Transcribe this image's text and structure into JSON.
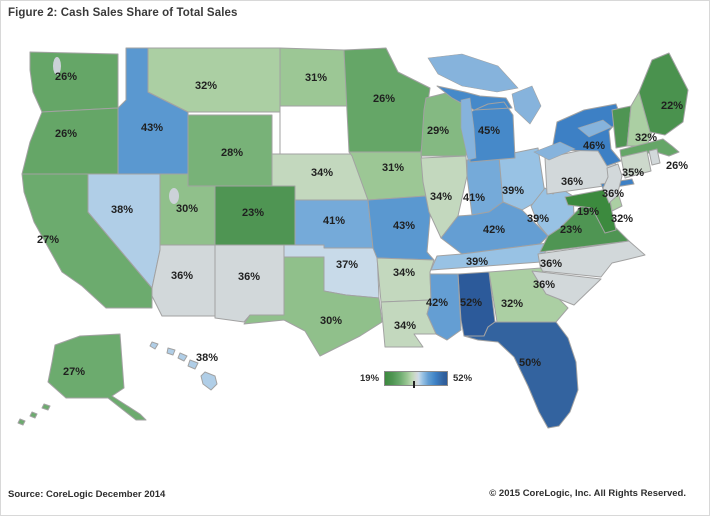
{
  "title": "Figure 2: Cash Sales Share of Total Sales",
  "legend": {
    "min_label": "19%",
    "max_label": "52%"
  },
  "footer": {
    "source": "Source: CoreLogic December 2014",
    "copyright": "© 2015 CoreLogic, Inc. All Rights Reserved."
  },
  "colors": {
    "no_data": "#ffffff",
    "state_border": "#a2a2a2",
    "lake": "#86b3dc",
    "gray_water": "#ccd2d8",
    "ramp": [
      [
        19,
        "#3c8a3e"
      ],
      [
        23,
        "#4f9553"
      ],
      [
        27,
        "#6cab6e"
      ],
      [
        31,
        "#9cc795"
      ],
      [
        33,
        "#b9d6b0"
      ],
      [
        35,
        "#cdd9cc"
      ],
      [
        36,
        "#d2d8da"
      ],
      [
        37,
        "#c8dae9"
      ],
      [
        39,
        "#98c2e4"
      ],
      [
        42,
        "#649ed3"
      ],
      [
        44,
        "#4f91cc"
      ],
      [
        46,
        "#3d80c5"
      ],
      [
        50,
        "#33639f"
      ],
      [
        52,
        "#2c5a9a"
      ]
    ]
  },
  "chart_data": {
    "type": "choropleth",
    "region": "United States",
    "metric": "Cash sales share of total sales (%)",
    "range": [
      19,
      52
    ],
    "title": "Figure 2: Cash Sales Share of Total Sales",
    "states": [
      {
        "abbr": "WA",
        "name": "Washington",
        "value": 26,
        "label": "26%",
        "labeled": true
      },
      {
        "abbr": "OR",
        "name": "Oregon",
        "value": 26,
        "label": "26%",
        "labeled": true
      },
      {
        "abbr": "CA",
        "name": "California",
        "value": 27,
        "label": "27%",
        "labeled": true
      },
      {
        "abbr": "NV",
        "name": "Nevada",
        "value": 38,
        "label": "38%",
        "labeled": true
      },
      {
        "abbr": "ID",
        "name": "Idaho",
        "value": 43,
        "label": "43%",
        "labeled": true
      },
      {
        "abbr": "MT",
        "name": "Montana",
        "value": 32,
        "label": "32%",
        "labeled": true
      },
      {
        "abbr": "WY",
        "name": "Wyoming",
        "value": 28,
        "label": "28%",
        "labeled": true
      },
      {
        "abbr": "UT",
        "name": "Utah",
        "value": 30,
        "label": "30%",
        "labeled": true
      },
      {
        "abbr": "CO",
        "name": "Colorado",
        "value": 23,
        "label": "23%",
        "labeled": true
      },
      {
        "abbr": "AZ",
        "name": "Arizona",
        "value": 36,
        "label": "36%",
        "labeled": true
      },
      {
        "abbr": "NM",
        "name": "New Mexico",
        "value": 36,
        "label": "36%",
        "labeled": true
      },
      {
        "abbr": "ND",
        "name": "North Dakota",
        "value": 31,
        "label": "31%",
        "labeled": true
      },
      {
        "abbr": "SD",
        "name": "South Dakota",
        "value": null,
        "label": "",
        "labeled": false
      },
      {
        "abbr": "NE",
        "name": "Nebraska",
        "value": 34,
        "label": "34%",
        "labeled": true
      },
      {
        "abbr": "KS",
        "name": "Kansas",
        "value": 41,
        "label": "41%",
        "labeled": true
      },
      {
        "abbr": "OK",
        "name": "Oklahoma",
        "value": 37,
        "label": "37%",
        "labeled": true
      },
      {
        "abbr": "TX",
        "name": "Texas",
        "value": 30,
        "label": "30%",
        "labeled": true
      },
      {
        "abbr": "MN",
        "name": "Minnesota",
        "value": 26,
        "label": "26%",
        "labeled": true
      },
      {
        "abbr": "IA",
        "name": "Iowa",
        "value": 31,
        "label": "31%",
        "labeled": true
      },
      {
        "abbr": "MO",
        "name": "Missouri",
        "value": 43,
        "label": "43%",
        "labeled": true
      },
      {
        "abbr": "AR",
        "name": "Arkansas",
        "value": 34,
        "label": "34%",
        "labeled": true
      },
      {
        "abbr": "LA",
        "name": "Louisiana",
        "value": 34,
        "label": "34%",
        "labeled": true
      },
      {
        "abbr": "WI",
        "name": "Wisconsin",
        "value": 29,
        "label": "29%",
        "labeled": true
      },
      {
        "abbr": "IL",
        "name": "Illinois",
        "value": 34,
        "label": "34%",
        "labeled": true
      },
      {
        "abbr": "IN",
        "name": "Indiana",
        "value": 41,
        "label": "41%",
        "labeled": true
      },
      {
        "abbr": "OH",
        "name": "Ohio",
        "value": 39,
        "label": "39%",
        "labeled": true
      },
      {
        "abbr": "MI",
        "name": "Michigan",
        "value": 45,
        "label": "45%",
        "labeled": true
      },
      {
        "abbr": "KY",
        "name": "Kentucky",
        "value": 42,
        "label": "42%",
        "labeled": true
      },
      {
        "abbr": "TN",
        "name": "Tennessee",
        "value": 39,
        "label": "39%",
        "labeled": true
      },
      {
        "abbr": "WV",
        "name": "West Virginia",
        "value": 39,
        "label": "39%",
        "labeled": true
      },
      {
        "abbr": "VA",
        "name": "Virginia",
        "value": 23,
        "label": "23%",
        "labeled": true
      },
      {
        "abbr": "MD",
        "name": "Maryland",
        "value": 19,
        "label": "19%",
        "labeled": true
      },
      {
        "abbr": "DE",
        "name": "Delaware",
        "value": 32,
        "label": "32%",
        "labeled": true
      },
      {
        "abbr": "NC",
        "name": "North Carolina",
        "value": 36,
        "label": "36%",
        "labeled": true
      },
      {
        "abbr": "GA",
        "name": "Georgia",
        "value": 32,
        "label": "32%",
        "labeled": true
      },
      {
        "abbr": "SC",
        "name": "South Carolina",
        "value": 36,
        "label": "36%",
        "labeled": true
      },
      {
        "abbr": "AL",
        "name": "Alabama",
        "value": 52,
        "label": "52%",
        "labeled": true
      },
      {
        "abbr": "MS",
        "name": "Mississippi",
        "value": 42,
        "label": "42%",
        "labeled": true
      },
      {
        "abbr": "FL",
        "name": "Florida",
        "value": 50,
        "label": "50%",
        "labeled": true
      },
      {
        "abbr": "PA",
        "name": "Pennsylvania",
        "value": 36,
        "label": "36%",
        "labeled": true
      },
      {
        "abbr": "NY",
        "name": "New York",
        "value": 46,
        "label": "46%",
        "labeled": true
      },
      {
        "abbr": "NJ",
        "name": "New Jersey",
        "value": 36,
        "label": "36%",
        "labeled": true
      },
      {
        "abbr": "VT",
        "name": "Vermont",
        "value": 23,
        "label": "",
        "labeled": false,
        "value_estimated_from_color": true
      },
      {
        "abbr": "NH",
        "name": "New Hampshire",
        "value": 32,
        "label": "32%",
        "labeled": true
      },
      {
        "abbr": "ME",
        "name": "Maine",
        "value": 22,
        "label": "22%",
        "labeled": true
      },
      {
        "abbr": "MA",
        "name": "Massachusetts",
        "value": 26,
        "label": "26%",
        "labeled": true
      },
      {
        "abbr": "CT",
        "name": "Connecticut",
        "value": 35,
        "label": "35%",
        "labeled": true
      },
      {
        "abbr": "RI",
        "name": "Rhode Island",
        "value": 36,
        "label": "",
        "labeled": false,
        "value_estimated_from_color": true
      },
      {
        "abbr": "AK",
        "name": "Alaska",
        "value": 27,
        "label": "27%",
        "labeled": true
      },
      {
        "abbr": "HI",
        "name": "Hawaii",
        "value": 38,
        "label": "38%",
        "labeled": true
      }
    ]
  }
}
